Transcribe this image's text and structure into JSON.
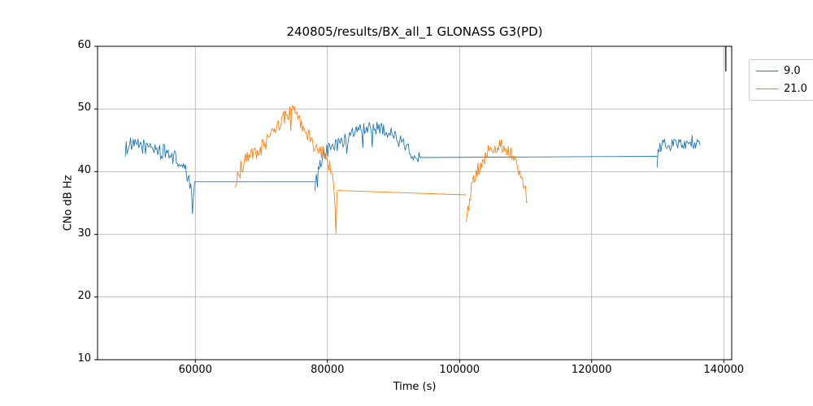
{
  "chart_data": {
    "type": "line",
    "title": "240805/results/BX_all_1 GLONASS G3(PD)",
    "xlabel": "Time (s)",
    "ylabel": "CNo dB Hz",
    "xlim": [
      45200,
      141200
    ],
    "ylim": [
      10,
      60
    ],
    "xticks": [
      60000,
      80000,
      100000,
      120000,
      140000
    ],
    "xtick_labels": [
      "60000",
      "80000",
      "100000",
      "120000",
      "140000"
    ],
    "yticks": [
      10,
      20,
      30,
      40,
      50,
      60
    ],
    "ytick_labels": [
      "10",
      "20",
      "30",
      "40",
      "50",
      "60"
    ],
    "grid": true,
    "grid_color": "#b0b0b0",
    "legend_position": "outside-upper-right",
    "artifact_line": {
      "x": 140300,
      "y_from": 56,
      "y_to": 60,
      "color": "#3a3a3a"
    },
    "series": [
      {
        "name": "9.0",
        "color": "#1f77b4",
        "segments": [
          {
            "noise": 1.3,
            "points": [
              [
                49400,
                43.5
              ],
              [
                49800,
                44.3
              ],
              [
                50600,
                44.0
              ],
              [
                51600,
                44.3
              ],
              [
                52600,
                43.8
              ],
              [
                53600,
                44.0
              ],
              [
                54600,
                43.2
              ],
              [
                55600,
                43.0
              ],
              [
                56600,
                42.5
              ],
              [
                57400,
                41.6
              ],
              [
                58100,
                40.6
              ],
              [
                58800,
                39.4
              ],
              [
                59300,
                37.4
              ],
              [
                59550,
                34.3
              ],
              [
                59750,
                36.0
              ],
              [
                59900,
                38.4
              ]
            ]
          },
          {
            "noise": 0,
            "points": [
              [
                59900,
                38.4
              ],
              [
                78100,
                38.4
              ]
            ]
          },
          {
            "noise": 1.1,
            "points": [
              [
                78100,
                37.0
              ],
              [
                78350,
                38.8
              ],
              [
                79000,
                41.5
              ],
              [
                79600,
                43.0
              ],
              [
                80500,
                43.8
              ],
              [
                81500,
                44.2
              ],
              [
                82500,
                44.8
              ],
              [
                83500,
                45.8
              ],
              [
                84500,
                46.6
              ],
              [
                85500,
                47.0
              ],
              [
                86500,
                47.2
              ],
              [
                87500,
                47.0
              ],
              [
                88500,
                46.8
              ],
              [
                89500,
                46.2
              ],
              [
                90500,
                45.3
              ],
              [
                91500,
                44.3
              ],
              [
                92400,
                43.3
              ],
              [
                93300,
                42.4
              ],
              [
                94000,
                42.2
              ]
            ]
          },
          {
            "noise": 0,
            "points": [
              [
                94000,
                42.25
              ],
              [
                129900,
                42.45
              ]
            ]
          },
          {
            "noise": 1.0,
            "points": [
              [
                129900,
                42.5
              ],
              [
                130200,
                43.6
              ],
              [
                130900,
                44.3
              ],
              [
                131900,
                44.1
              ],
              [
                132900,
                44.6
              ],
              [
                133900,
                44.4
              ],
              [
                134800,
                45.0
              ],
              [
                135600,
                44.6
              ],
              [
                136400,
                44.2
              ]
            ]
          }
        ]
      },
      {
        "name": "21.0",
        "color": "#ff7f0e",
        "segments": [
          {
            "noise": 1.3,
            "points": [
              [
                66000,
                36.5
              ],
              [
                66250,
                38.5
              ],
              [
                66900,
                40.5
              ],
              [
                67700,
                41.8
              ],
              [
                68700,
                42.6
              ],
              [
                69700,
                43.4
              ],
              [
                70700,
                44.8
              ],
              [
                71700,
                46.0
              ],
              [
                72700,
                47.5
              ],
              [
                73500,
                48.8
              ],
              [
                74300,
                49.6
              ],
              [
                75000,
                49.3
              ],
              [
                75800,
                48.0
              ],
              [
                76600,
                46.5
              ],
              [
                77400,
                45.2
              ],
              [
                78200,
                44.2
              ],
              [
                79100,
                43.2
              ],
              [
                79900,
                42.0
              ],
              [
                80500,
                40.5
              ],
              [
                80950,
                38.8
              ],
              [
                81150,
                33.5
              ],
              [
                81280,
                30.3
              ],
              [
                81450,
                36.8
              ]
            ]
          },
          {
            "noise": 0,
            "points": [
              [
                81450,
                37.0
              ],
              [
                101000,
                36.3
              ]
            ]
          },
          {
            "noise": 1.2,
            "points": [
              [
                101000,
                31.0
              ],
              [
                101250,
                33.5
              ],
              [
                101650,
                36.5
              ],
              [
                102250,
                39.0
              ],
              [
                103050,
                41.0
              ],
              [
                104050,
                42.8
              ],
              [
                105050,
                43.8
              ],
              [
                106050,
                44.3
              ],
              [
                106850,
                44.0
              ],
              [
                107650,
                43.2
              ],
              [
                108450,
                42.0
              ],
              [
                109250,
                39.8
              ],
              [
                109850,
                37.8
              ],
              [
                110300,
                35.2
              ]
            ]
          }
        ]
      }
    ]
  }
}
